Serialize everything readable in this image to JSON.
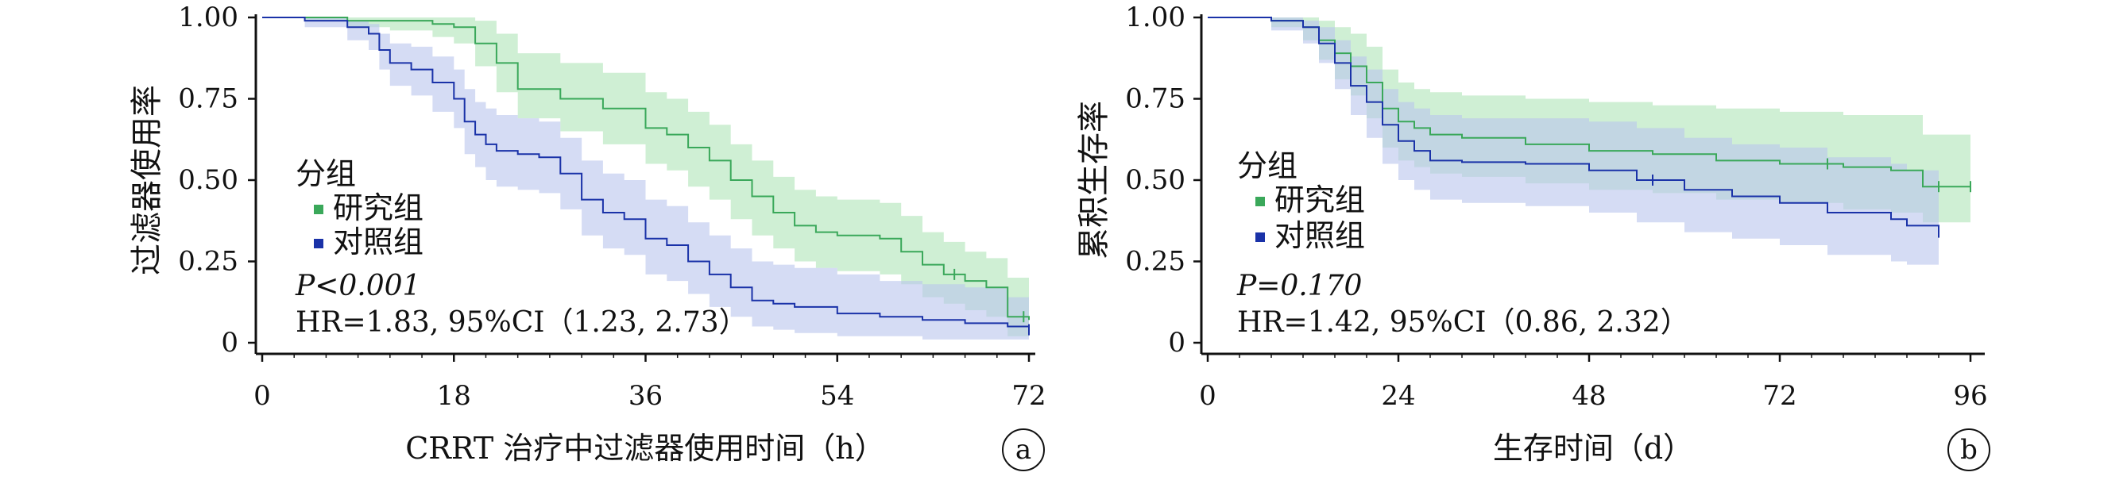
{
  "chart_data": [
    {
      "type": "line",
      "panel_label": "a",
      "xlabel": "CRRT 治疗中过滤器使用时间（h）",
      "ylabel": "过滤器使用率",
      "xlim": [
        0,
        72
      ],
      "ylim": [
        0,
        1
      ],
      "x_ticks": [
        "0",
        "18",
        "36",
        "54",
        "72"
      ],
      "y_ticks": [
        "0",
        "0.25",
        "0.50",
        "0.75",
        "1.00"
      ],
      "legend_title": "分组",
      "stat_p": "P<0.001",
      "stat_hr": "HR=1.83, 95%CI（1.23, 2.73）",
      "series": [
        {
          "name": "研究组",
          "color": "#3aa85a",
          "band_color": "#bfe9c5",
          "x": [
            0,
            4,
            8,
            12,
            16,
            18,
            20,
            22,
            24,
            28,
            32,
            36,
            38,
            40,
            42,
            44,
            46,
            48,
            50,
            52,
            54,
            58,
            60,
            62,
            64,
            66,
            68,
            70,
            72
          ],
          "y": [
            1.0,
            1.0,
            0.99,
            0.99,
            0.98,
            0.97,
            0.92,
            0.86,
            0.78,
            0.75,
            0.72,
            0.66,
            0.64,
            0.6,
            0.56,
            0.5,
            0.45,
            0.4,
            0.36,
            0.34,
            0.33,
            0.32,
            0.28,
            0.24,
            0.21,
            0.19,
            0.17,
            0.08,
            0.07
          ],
          "upper": [
            1.0,
            1.0,
            1.0,
            1.0,
            1.0,
            1.0,
            0.99,
            0.95,
            0.89,
            0.86,
            0.83,
            0.77,
            0.75,
            0.71,
            0.67,
            0.61,
            0.56,
            0.51,
            0.47,
            0.45,
            0.44,
            0.43,
            0.39,
            0.34,
            0.31,
            0.28,
            0.26,
            0.2,
            0.19
          ],
          "lower": [
            1.0,
            0.99,
            0.97,
            0.96,
            0.94,
            0.92,
            0.85,
            0.77,
            0.69,
            0.65,
            0.61,
            0.55,
            0.53,
            0.48,
            0.44,
            0.38,
            0.33,
            0.29,
            0.25,
            0.23,
            0.22,
            0.21,
            0.18,
            0.14,
            0.12,
            0.1,
            0.08,
            0.02,
            0.02
          ],
          "censor_x": [
            65,
            71.5
          ]
        },
        {
          "name": "对照组",
          "color": "#1a32a8",
          "band_color": "#b9c4ec",
          "x": [
            0,
            4,
            8,
            10,
            11,
            12,
            14,
            16,
            18,
            19,
            20,
            21,
            22,
            24,
            26,
            28,
            30,
            32,
            34,
            36,
            38,
            40,
            42,
            44,
            46,
            48,
            50,
            54,
            58,
            62,
            66,
            70,
            72
          ],
          "y": [
            1.0,
            0.99,
            0.97,
            0.95,
            0.9,
            0.86,
            0.84,
            0.8,
            0.75,
            0.68,
            0.64,
            0.61,
            0.59,
            0.58,
            0.57,
            0.52,
            0.44,
            0.4,
            0.38,
            0.32,
            0.3,
            0.25,
            0.21,
            0.17,
            0.13,
            0.12,
            0.11,
            0.09,
            0.08,
            0.07,
            0.06,
            0.05,
            0.04
          ],
          "upper": [
            1.0,
            1.0,
            0.99,
            0.98,
            0.95,
            0.92,
            0.91,
            0.88,
            0.84,
            0.78,
            0.74,
            0.72,
            0.7,
            0.69,
            0.68,
            0.63,
            0.56,
            0.52,
            0.5,
            0.44,
            0.42,
            0.37,
            0.33,
            0.29,
            0.25,
            0.24,
            0.23,
            0.21,
            0.19,
            0.18,
            0.17,
            0.14,
            0.13
          ],
          "lower": [
            1.0,
            0.97,
            0.93,
            0.9,
            0.84,
            0.79,
            0.76,
            0.71,
            0.66,
            0.58,
            0.54,
            0.5,
            0.48,
            0.47,
            0.46,
            0.41,
            0.33,
            0.29,
            0.27,
            0.21,
            0.19,
            0.15,
            0.11,
            0.08,
            0.05,
            0.04,
            0.03,
            0.02,
            0.02,
            0.01,
            0.01,
            0.01,
            0.01
          ],
          "censor_x": [
            72
          ]
        }
      ]
    },
    {
      "type": "line",
      "panel_label": "b",
      "xlabel": "生存时间（d）",
      "ylabel": "累积生存率",
      "xlim": [
        0,
        97
      ],
      "ylim": [
        0,
        1
      ],
      "x_ticks": [
        "0",
        "24",
        "48",
        "72",
        "96"
      ],
      "y_ticks": [
        "0",
        "0.25",
        "0.50",
        "0.75",
        "1.00"
      ],
      "legend_title": "分组",
      "stat_p": "P=0.170",
      "stat_hr": "HR=1.42, 95%CI（0.86, 2.32）",
      "series": [
        {
          "name": "研究组",
          "color": "#3aa85a",
          "band_color": "#bfe9c5",
          "x": [
            0,
            8,
            12,
            14,
            16,
            18,
            20,
            22,
            24,
            26,
            28,
            32,
            40,
            48,
            56,
            64,
            72,
            80,
            86,
            90,
            96
          ],
          "y": [
            1.0,
            0.99,
            0.97,
            0.93,
            0.89,
            0.85,
            0.8,
            0.72,
            0.68,
            0.66,
            0.64,
            0.63,
            0.61,
            0.59,
            0.58,
            0.56,
            0.55,
            0.54,
            0.53,
            0.48,
            0.48
          ],
          "upper": [
            1.0,
            1.0,
            1.0,
            0.99,
            0.97,
            0.95,
            0.91,
            0.84,
            0.8,
            0.78,
            0.77,
            0.76,
            0.75,
            0.74,
            0.73,
            0.72,
            0.71,
            0.7,
            0.7,
            0.64,
            0.64
          ],
          "lower": [
            1.0,
            0.97,
            0.93,
            0.87,
            0.81,
            0.76,
            0.69,
            0.6,
            0.56,
            0.54,
            0.52,
            0.51,
            0.49,
            0.47,
            0.46,
            0.44,
            0.43,
            0.41,
            0.4,
            0.37,
            0.37
          ],
          "censor_x": [
            78,
            92,
            96
          ]
        },
        {
          "name": "对照组",
          "color": "#1a32a8",
          "band_color": "#b9c4ec",
          "x": [
            0,
            8,
            12,
            14,
            16,
            18,
            20,
            22,
            24,
            26,
            28,
            32,
            40,
            48,
            54,
            60,
            66,
            72,
            78,
            86,
            88,
            92
          ],
          "y": [
            1.0,
            0.99,
            0.97,
            0.92,
            0.86,
            0.79,
            0.74,
            0.67,
            0.62,
            0.59,
            0.56,
            0.555,
            0.55,
            0.53,
            0.5,
            0.47,
            0.45,
            0.43,
            0.4,
            0.38,
            0.36,
            0.34
          ],
          "upper": [
            1.0,
            1.0,
            0.99,
            0.97,
            0.93,
            0.88,
            0.84,
            0.78,
            0.74,
            0.72,
            0.7,
            0.69,
            0.69,
            0.68,
            0.66,
            0.63,
            0.61,
            0.6,
            0.57,
            0.55,
            0.53,
            0.51
          ],
          "lower": [
            1.0,
            0.96,
            0.92,
            0.86,
            0.78,
            0.7,
            0.63,
            0.55,
            0.5,
            0.47,
            0.44,
            0.43,
            0.42,
            0.4,
            0.37,
            0.34,
            0.32,
            0.3,
            0.27,
            0.25,
            0.24,
            0.23
          ],
          "censor_x": [
            56,
            92
          ]
        }
      ]
    }
  ]
}
